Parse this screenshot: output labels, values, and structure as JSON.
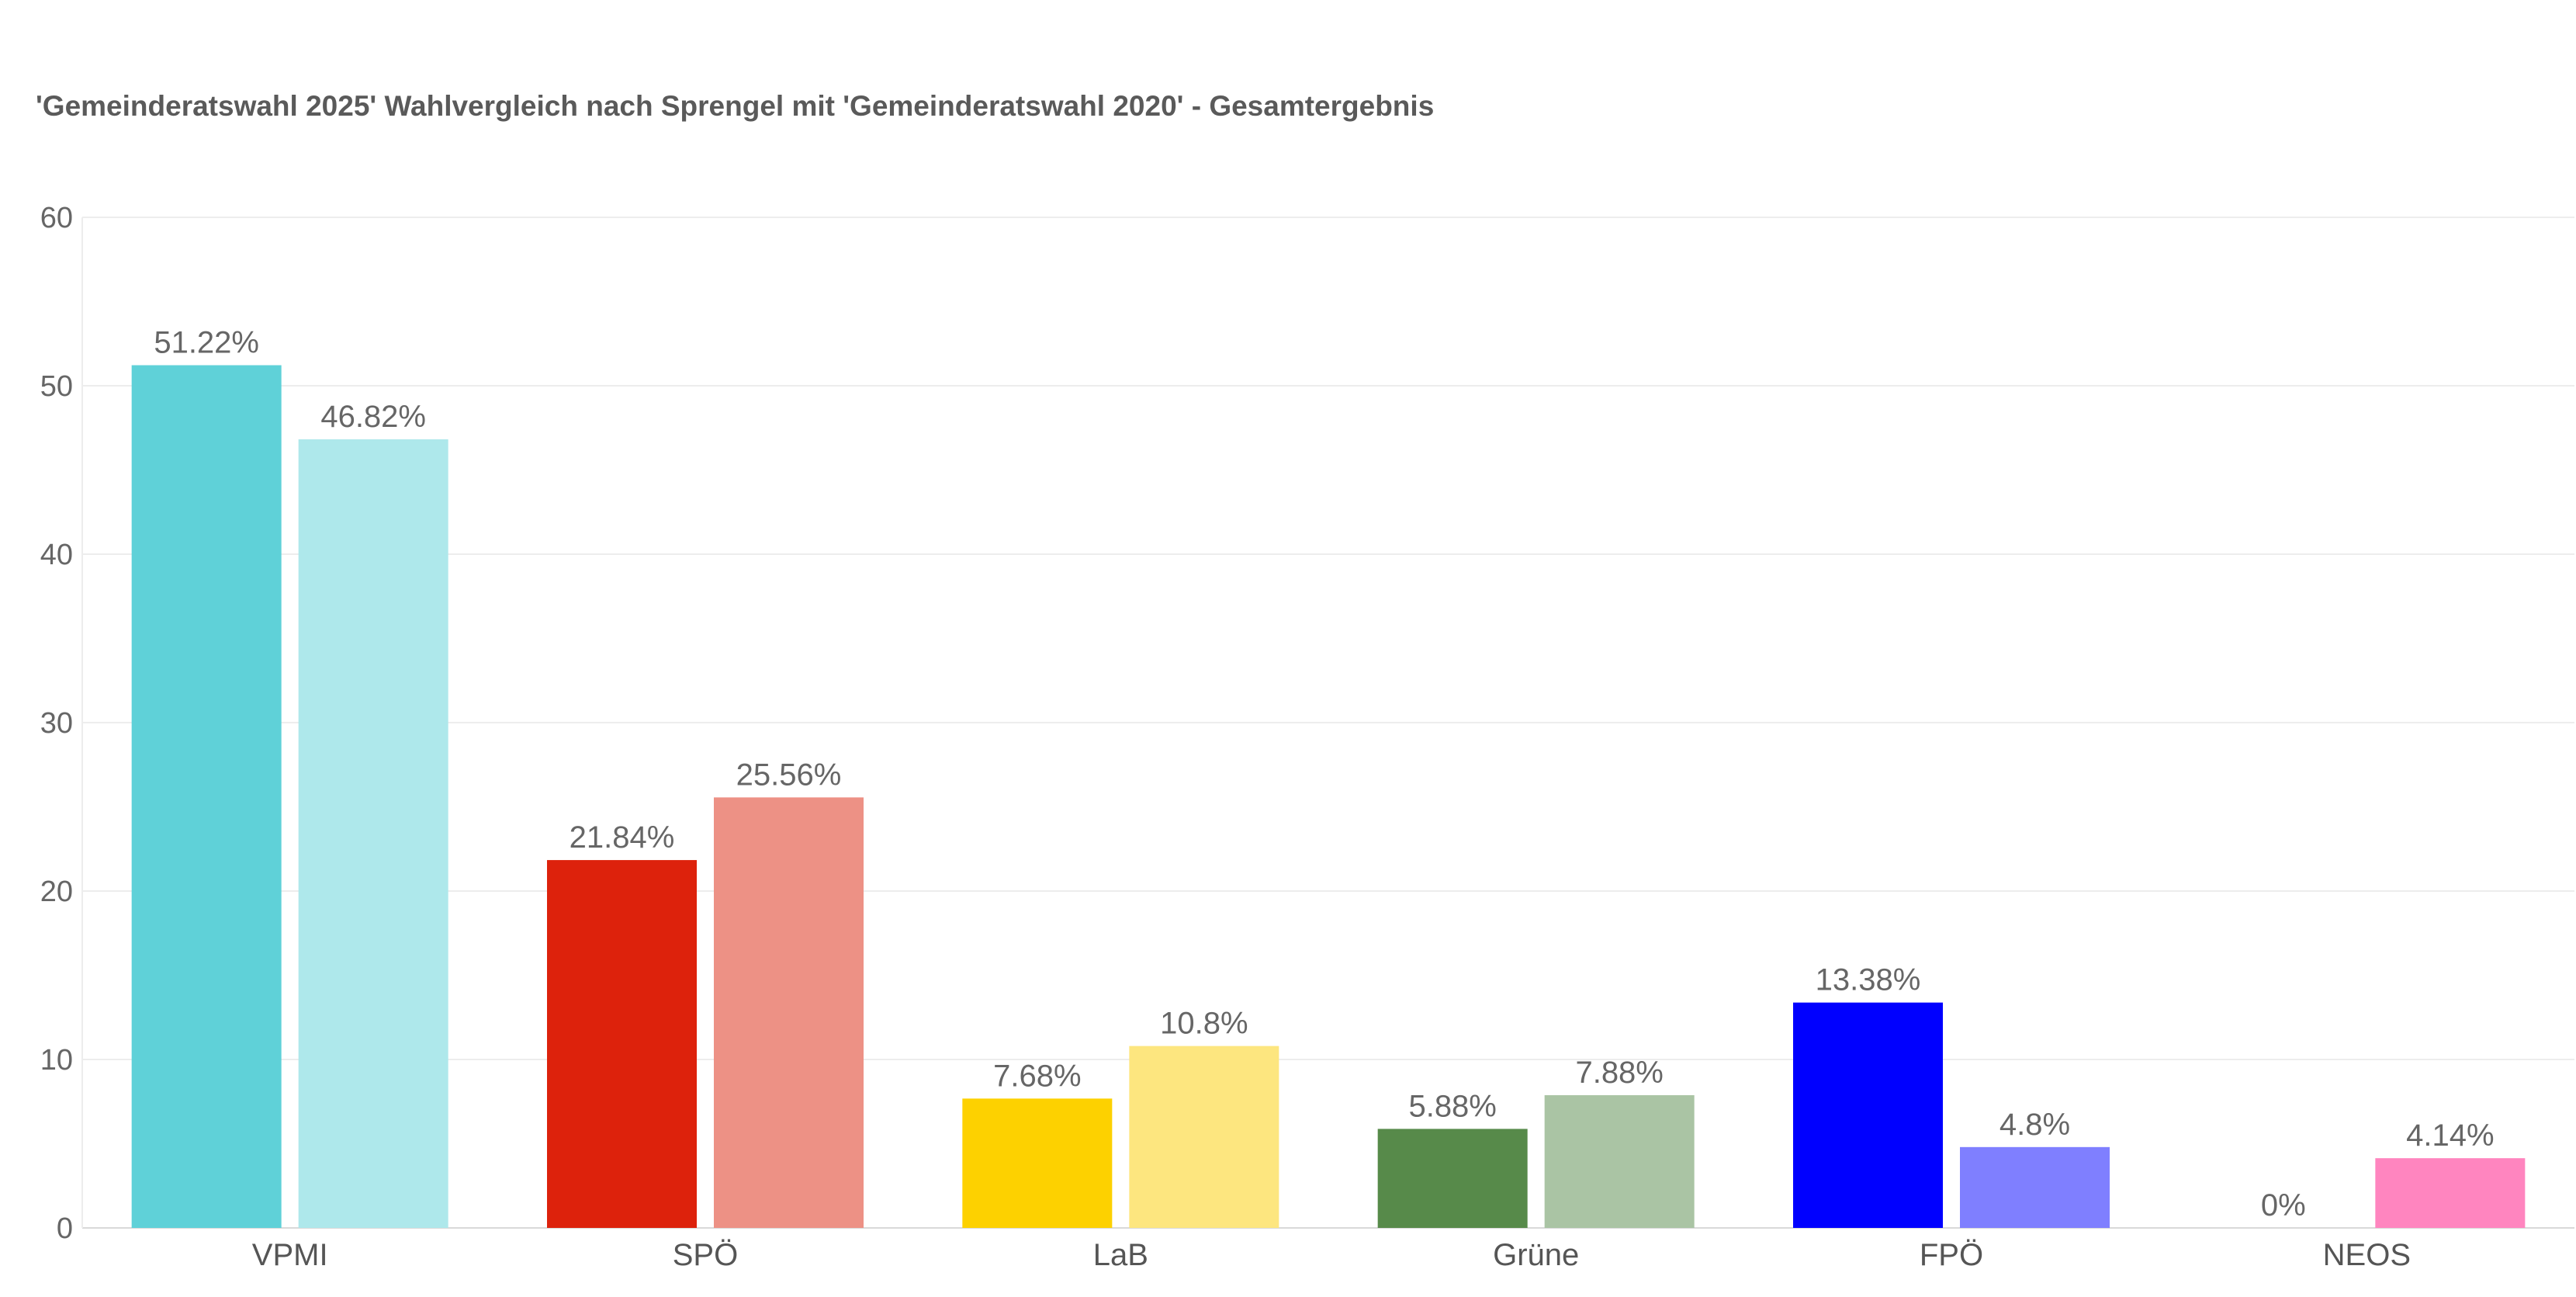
{
  "chart_data": {
    "type": "bar",
    "title": "'Gemeinderatswahl 2025' Wahlvergleich nach Sprengel mit 'Gemeinderatswahl 2020' - Gesamtergebnis",
    "categories": [
      "VPMI",
      "SPÖ",
      "LaB",
      "Grüne",
      "FPÖ",
      "NEOS"
    ],
    "series": [
      {
        "values": [
          51.22,
          21.84,
          7.68,
          5.88,
          13.38,
          0
        ],
        "labels": [
          "51.22%",
          "21.84%",
          "7.68%",
          "5.88%",
          "13.38%",
          "0%"
        ],
        "colors": [
          "#5fd1d8",
          "#dd220c",
          "#fdd100",
          "#578a4a",
          "#0000ff",
          "#ff7fbd"
        ]
      },
      {
        "values": [
          46.82,
          25.56,
          10.8,
          7.88,
          4.8,
          4.14
        ],
        "labels": [
          "46.82%",
          "25.56%",
          "10.8%",
          "7.88%",
          "4.8%",
          "4.14%"
        ],
        "colors": [
          "#aee8eb",
          "#ed9185",
          "#fde67f",
          "#aac4a4",
          "#7f7fff",
          "#ff85bf"
        ]
      }
    ],
    "ylim": [
      0,
      60
    ],
    "yticks": [
      "0",
      "10",
      "20",
      "30",
      "40",
      "50",
      "60"
    ],
    "grid": true,
    "xlabel": "",
    "ylabel": ""
  }
}
